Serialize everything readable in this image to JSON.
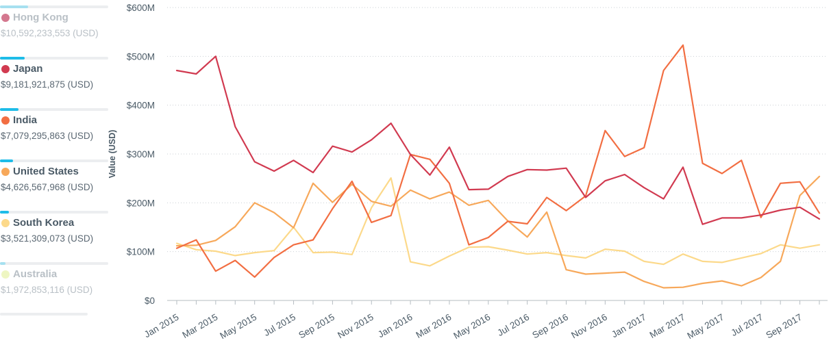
{
  "legend": {
    "items": [
      {
        "name": "Hong Kong",
        "value": "$10,592,233,553 (USD)",
        "color": "#d4788f",
        "share": 0.26,
        "faded": true
      },
      {
        "name": "Japan",
        "value": "$9,181,921,875 (USD)",
        "color": "#d13a50",
        "share": 0.23,
        "faded": false
      },
      {
        "name": "India",
        "value": "$7,079,295,863 (USD)",
        "color": "#f26e42",
        "share": 0.17,
        "faded": false
      },
      {
        "name": "United States",
        "value": "$4,626,567,968 (USD)",
        "color": "#f7a85a",
        "share": 0.12,
        "faded": false
      },
      {
        "name": "South Korea",
        "value": "$3,521,309,073 (USD)",
        "color": "#fcd98a",
        "share": 0.08,
        "faded": false
      },
      {
        "name": "Australia",
        "value": "$1,972,853,116 (USD)",
        "color": "#eef6c2",
        "share": 0.05,
        "faded": true
      }
    ]
  },
  "chart_data": {
    "type": "line",
    "title": "",
    "xlabel": "",
    "ylabel": "Value (USD)",
    "ylim": [
      0,
      600000000
    ],
    "yticks": [
      0,
      100000000,
      200000000,
      300000000,
      400000000,
      500000000,
      600000000
    ],
    "ytick_labels": [
      "$0",
      "$100M",
      "$200M",
      "$300M",
      "$400M",
      "$500M",
      "$600M"
    ],
    "grid": "horizontal dotted",
    "x": [
      "2015-01",
      "2015-02",
      "2015-03",
      "2015-04",
      "2015-05",
      "2015-06",
      "2015-07",
      "2015-08",
      "2015-09",
      "2015-10",
      "2015-11",
      "2015-12",
      "2016-01",
      "2016-02",
      "2016-03",
      "2016-04",
      "2016-05",
      "2016-06",
      "2016-07",
      "2016-08",
      "2016-09",
      "2016-10",
      "2016-11",
      "2016-12",
      "2017-01",
      "2017-02",
      "2017-03",
      "2017-04",
      "2017-05",
      "2017-06",
      "2017-07",
      "2017-08",
      "2017-09",
      "2017-10"
    ],
    "xtick_labels": [
      "Jan 2015",
      "Mar 2015",
      "May 2015",
      "Jul 2015",
      "Sep 2015",
      "Nov 2015",
      "Jan 2016",
      "Mar 2016",
      "May 2016",
      "Jul 2016",
      "Sep 2016",
      "Nov 2016",
      "Jan 2017",
      "Mar 2017",
      "May 2017",
      "Jul 2017",
      "Sep 2017"
    ],
    "series": [
      {
        "name": "South Korea",
        "color": "#fcd98a",
        "values": [
          117,
          104,
          101,
          92,
          98,
          102,
          150,
          98,
          99,
          94,
          190,
          251,
          79,
          71,
          91,
          109,
          110,
          103,
          95,
          98,
          92,
          87,
          105,
          101,
          80,
          74,
          95,
          80,
          78,
          87,
          96,
          114,
          107,
          114
        ]
      },
      {
        "name": "United States",
        "color": "#f7a85a",
        "values": [
          112,
          113,
          123,
          151,
          200,
          180,
          149,
          240,
          201,
          238,
          203,
          193,
          226,
          208,
          222,
          195,
          205,
          163,
          130,
          181,
          63,
          54,
          56,
          58,
          39,
          26,
          27,
          35,
          40,
          30,
          47,
          80,
          215,
          254
        ]
      },
      {
        "name": "India",
        "color": "#f26e42",
        "values": [
          107,
          124,
          60,
          82,
          48,
          88,
          114,
          124,
          188,
          244,
          160,
          174,
          299,
          289,
          240,
          114,
          129,
          162,
          157,
          211,
          184,
          214,
          348,
          295,
          313,
          471,
          523,
          281,
          260,
          287,
          170,
          240,
          243,
          179
        ]
      },
      {
        "name": "Japan",
        "color": "#d13a50",
        "values": [
          471,
          464,
          500,
          356,
          284,
          265,
          287,
          262,
          316,
          304,
          329,
          363,
          299,
          257,
          314,
          227,
          228,
          254,
          268,
          267,
          271,
          211,
          245,
          258,
          231,
          208,
          273,
          156,
          169,
          169,
          175,
          185,
          191,
          167
        ]
      }
    ]
  }
}
